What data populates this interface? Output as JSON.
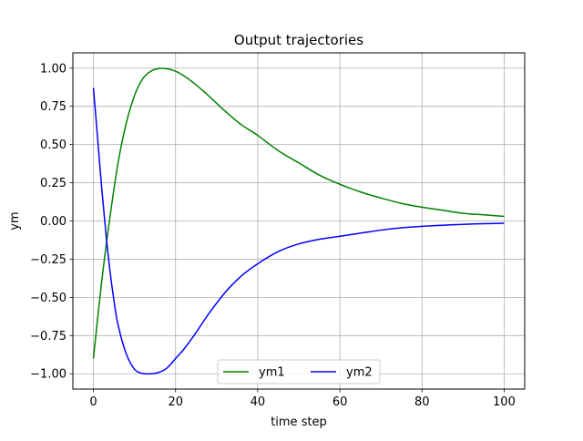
{
  "chart_data": {
    "type": "line",
    "title": "Output trajectories",
    "xlabel": "time step",
    "ylabel": "ym",
    "xlim": [
      -5,
      105
    ],
    "ylim": [
      -1.1,
      1.1
    ],
    "xticks": [
      0,
      20,
      40,
      60,
      80,
      100
    ],
    "yticks": [
      -1.0,
      -0.75,
      -0.5,
      -0.25,
      0.0,
      0.25,
      0.5,
      0.75,
      1.0
    ],
    "xtick_labels": [
      "0",
      "20",
      "40",
      "60",
      "80",
      "100"
    ],
    "ytick_labels": [
      "−1.00",
      "−0.75",
      "−0.50",
      "−0.25",
      "0.00",
      "0.25",
      "0.50",
      "0.75",
      "1.00"
    ],
    "grid": true,
    "legend": {
      "placement": "lower-center",
      "columns": 2
    },
    "series": [
      {
        "name": "ym1",
        "color": "#008000",
        "x": [
          0,
          2,
          4,
          6,
          8,
          10,
          12,
          14,
          16,
          18,
          20,
          22,
          25,
          28,
          32,
          36,
          40,
          45,
          50,
          55,
          60,
          65,
          70,
          75,
          80,
          85,
          90,
          95,
          100
        ],
        "y": [
          -0.9,
          -0.4,
          0.02,
          0.38,
          0.64,
          0.82,
          0.93,
          0.98,
          0.998,
          0.995,
          0.98,
          0.95,
          0.89,
          0.82,
          0.72,
          0.63,
          0.56,
          0.46,
          0.38,
          0.3,
          0.24,
          0.19,
          0.15,
          0.115,
          0.09,
          0.07,
          0.05,
          0.04,
          0.03
        ]
      },
      {
        "name": "ym2",
        "color": "#0000ff",
        "x": [
          0,
          1,
          2,
          3,
          4,
          5,
          6,
          8,
          10,
          12,
          14,
          16,
          18,
          20,
          22,
          25,
          28,
          32,
          36,
          40,
          45,
          50,
          55,
          60,
          65,
          70,
          75,
          80,
          85,
          90,
          95,
          100
        ],
        "y": [
          0.87,
          0.55,
          0.22,
          -0.07,
          -0.32,
          -0.52,
          -0.68,
          -0.87,
          -0.97,
          -0.998,
          -1.0,
          -0.99,
          -0.96,
          -0.9,
          -0.84,
          -0.73,
          -0.61,
          -0.47,
          -0.36,
          -0.28,
          -0.2,
          -0.15,
          -0.12,
          -0.1,
          -0.08,
          -0.06,
          -0.045,
          -0.035,
          -0.028,
          -0.022,
          -0.018,
          -0.015
        ]
      }
    ]
  }
}
